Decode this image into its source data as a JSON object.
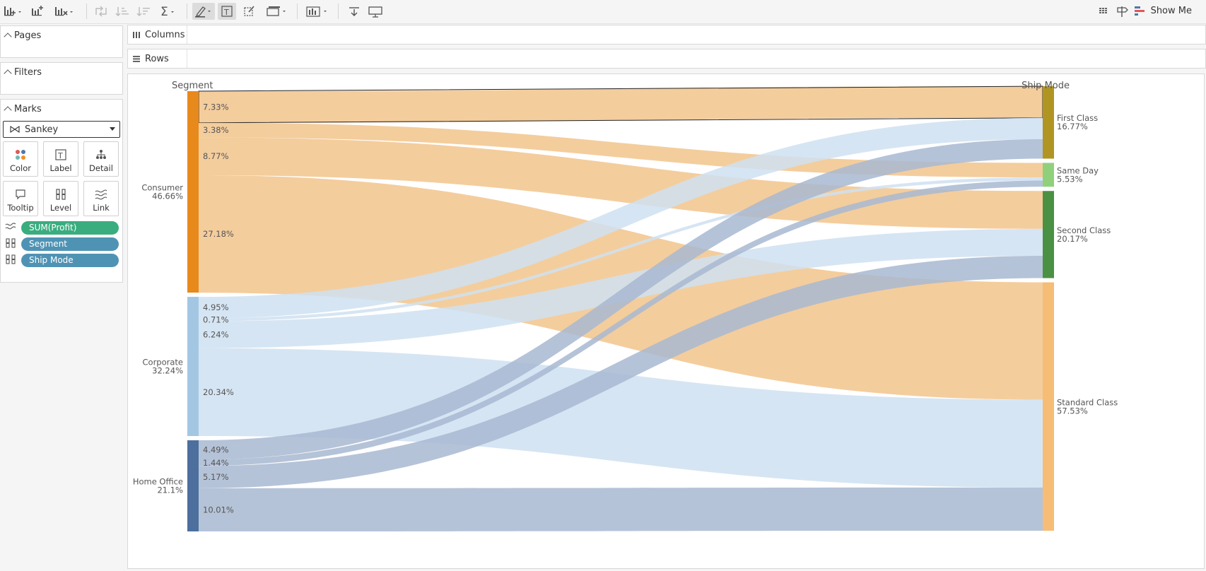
{
  "toolbar": {
    "show_me_label": "Show Me"
  },
  "panels": {
    "pages_title": "Pages",
    "filters_title": "Filters",
    "marks_title": "Marks"
  },
  "marks": {
    "mark_type": "Sankey",
    "buttons": {
      "color": "Color",
      "label": "Label",
      "detail": "Detail",
      "tooltip": "Tooltip",
      "level": "Level",
      "link": "Link"
    },
    "pills": [
      {
        "label": "SUM(Profit)",
        "color": "#3aad7f"
      },
      {
        "label": "Segment",
        "color": "#4f93b4"
      },
      {
        "label": "Ship Mode",
        "color": "#4f93b4"
      }
    ]
  },
  "shelves": {
    "columns": "Columns",
    "rows": "Rows"
  },
  "chart_data": {
    "type": "sankey",
    "left_title": "Segment",
    "right_title": "Ship Mode",
    "sources": [
      {
        "name": "Consumer",
        "pct": "46.66%",
        "color": "#e8891c"
      },
      {
        "name": "Corporate",
        "pct": "32.24%",
        "color": "#a3c7e3"
      },
      {
        "name": "Home Office",
        "pct": "21.1%",
        "color": "#4d6f9e"
      }
    ],
    "targets": [
      {
        "name": "First Class",
        "pct": "16.77%",
        "color": "#b09522"
      },
      {
        "name": "Same Day",
        "pct": "5.53%",
        "color": "#91d07b"
      },
      {
        "name": "Second Class",
        "pct": "20.17%",
        "color": "#4b9143"
      },
      {
        "name": "Standard Class",
        "pct": "57.53%",
        "color": "#f5bd76"
      }
    ],
    "links": [
      {
        "source": "Consumer",
        "target": "First Class",
        "label": "7.33%",
        "value": 7.33
      },
      {
        "source": "Consumer",
        "target": "Same Day",
        "label": "3.38%",
        "value": 3.38
      },
      {
        "source": "Consumer",
        "target": "Second Class",
        "label": "8.77%",
        "value": 8.77
      },
      {
        "source": "Consumer",
        "target": "Standard Class",
        "label": "27.18%",
        "value": 27.18
      },
      {
        "source": "Corporate",
        "target": "First Class",
        "label": "4.95%",
        "value": 4.95
      },
      {
        "source": "Corporate",
        "target": "Same Day",
        "label": "0.71%",
        "value": 0.71
      },
      {
        "source": "Corporate",
        "target": "Second Class",
        "label": "6.24%",
        "value": 6.24
      },
      {
        "source": "Corporate",
        "target": "Standard Class",
        "label": "20.34%",
        "value": 20.34
      },
      {
        "source": "Home Office",
        "target": "First Class",
        "label": "4.49%",
        "value": 4.49
      },
      {
        "source": "Home Office",
        "target": "Same Day",
        "label": "1.44%",
        "value": 1.44
      },
      {
        "source": "Home Office",
        "target": "Second Class",
        "label": "5.17%",
        "value": 5.17
      },
      {
        "source": "Home Office",
        "target": "Standard Class",
        "label": "10.01%",
        "value": 10.01
      }
    ],
    "link_colors": {
      "Consumer": "#f2c48c",
      "Corporate": "#cfe1f1",
      "Home Office": "#a8b8d1"
    },
    "selected_link": "7.33%"
  }
}
